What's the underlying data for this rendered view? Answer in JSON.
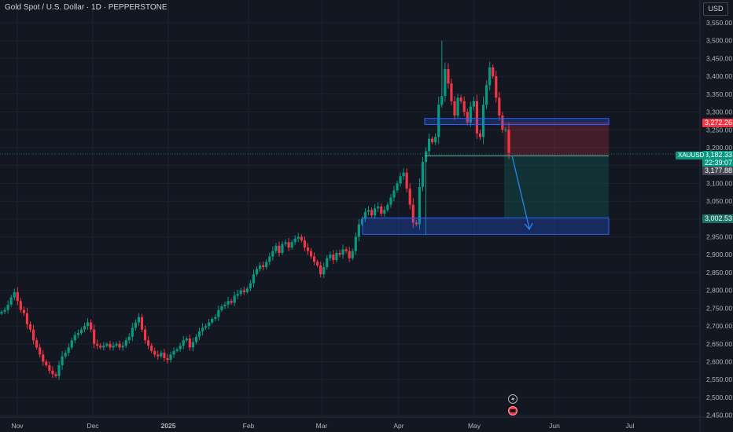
{
  "header": {
    "title": "Gold Spot / U.S. Dollar · 1D · PEPPERSTONE",
    "currency": "USD"
  },
  "price_axis": {
    "ticks": [
      "3,550.00",
      "3,500.00",
      "3,450.00",
      "3,400.00",
      "3,350.00",
      "3,300.00",
      "3,250.00",
      "3,200.00",
      "3,150.00",
      "3,100.00",
      "3,050.00",
      "3,000.00",
      "2,950.00",
      "2,900.00",
      "2,850.00",
      "2,800.00",
      "2,750.00",
      "2,700.00",
      "2,650.00",
      "2,600.00",
      "2,550.00",
      "2,500.00",
      "2,450.00"
    ]
  },
  "time_axis": {
    "ticks": [
      "Nov",
      "Dec",
      "2025",
      "Feb",
      "Mar",
      "Apr",
      "May",
      "Jun",
      "Jul"
    ]
  },
  "price_tags": {
    "stop_loss": "3,272.26",
    "current": "3,182.33",
    "countdown": "22:39:07",
    "entry": "3,177.88",
    "target": "3,002.53",
    "symbol": "XAUUSD"
  },
  "colors": {
    "up": "#089981",
    "down": "#f23645",
    "background": "#131722",
    "zone_border": "#2962ff",
    "arrow": "#2f80ed"
  },
  "icons": [
    "lightning-icon",
    "earnings-marker-icon"
  ],
  "chart_data": {
    "type": "candlestick",
    "symbol": "XAUUSD",
    "timeframe": "1D",
    "ylim": [
      2440,
      3575
    ],
    "ohlc_approx": [
      {
        "date": "2024-11-01",
        "o": 2745,
        "h": 2755,
        "l": 2732,
        "c": 2740
      },
      {
        "date": "2024-11-06",
        "o": 2745,
        "h": 2755,
        "l": 2650,
        "c": 2660
      },
      {
        "date": "2024-11-14",
        "o": 2580,
        "h": 2600,
        "l": 2540,
        "c": 2565
      },
      {
        "date": "2024-11-22",
        "o": 2670,
        "h": 2720,
        "l": 2660,
        "c": 2710
      },
      {
        "date": "2024-12-02",
        "o": 2640,
        "h": 2660,
        "l": 2620,
        "c": 2645
      },
      {
        "date": "2024-12-12",
        "o": 2690,
        "h": 2730,
        "l": 2680,
        "c": 2690
      },
      {
        "date": "2024-12-19",
        "o": 2620,
        "h": 2645,
        "l": 2585,
        "c": 2610
      },
      {
        "date": "2025-01-02",
        "o": 2630,
        "h": 2670,
        "l": 2625,
        "c": 2660
      },
      {
        "date": "2025-01-15",
        "o": 2680,
        "h": 2720,
        "l": 2670,
        "c": 2700
      },
      {
        "date": "2025-01-31",
        "o": 2795,
        "h": 2815,
        "l": 2785,
        "c": 2800
      },
      {
        "date": "2025-02-11",
        "o": 2900,
        "h": 2935,
        "l": 2880,
        "c": 2920
      },
      {
        "date": "2025-02-25",
        "o": 2915,
        "h": 2920,
        "l": 2880,
        "c": 2890
      },
      {
        "date": "2025-03-14",
        "o": 2985,
        "h": 3005,
        "l": 2975,
        "c": 2985
      },
      {
        "date": "2025-03-26",
        "o": 3015,
        "h": 3045,
        "l": 3010,
        "c": 3035
      },
      {
        "date": "2025-04-02",
        "o": 3115,
        "h": 3150,
        "l": 3100,
        "c": 3130
      },
      {
        "date": "2025-04-07",
        "o": 3010,
        "h": 3030,
        "l": 2955,
        "c": 2980
      },
      {
        "date": "2025-04-10",
        "o": 3080,
        "h": 3180,
        "l": 3080,
        "c": 3180
      },
      {
        "date": "2025-04-14",
        "o": 3220,
        "h": 3245,
        "l": 3200,
        "c": 3230
      },
      {
        "date": "2025-04-22",
        "o": 3425,
        "h": 3500,
        "l": 3380,
        "c": 3390
      },
      {
        "date": "2025-04-25",
        "o": 3335,
        "h": 3365,
        "l": 3260,
        "c": 3320
      },
      {
        "date": "2025-05-01",
        "o": 3240,
        "h": 3265,
        "l": 3210,
        "c": 3240
      },
      {
        "date": "2025-05-06",
        "o": 3335,
        "h": 3435,
        "l": 3330,
        "c": 3425
      },
      {
        "date": "2025-05-09",
        "o": 3325,
        "h": 3330,
        "l": 3270,
        "c": 3280
      },
      {
        "date": "2025-05-13",
        "o": 3260,
        "h": 3270,
        "l": 3240,
        "c": 3250
      },
      {
        "date": "2025-05-15",
        "o": 3245,
        "h": 3250,
        "l": 3182,
        "c": 3182
      }
    ],
    "annotations": {
      "resistance_zone": [
        3265,
        3282
      ],
      "support_zone": [
        2957,
        3003
      ],
      "short_position": {
        "entry": 3177.88,
        "stop": 3272.26,
        "target": 3002.53
      }
    }
  }
}
